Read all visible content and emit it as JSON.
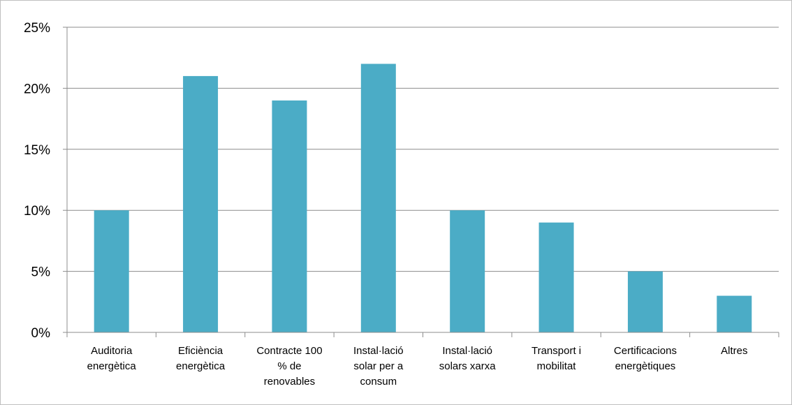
{
  "chart_data": {
    "type": "bar",
    "title": "",
    "xlabel": "",
    "ylabel": "",
    "categories": [
      [
        "Auditoria",
        "energètica"
      ],
      [
        "Eficiència",
        "energètica"
      ],
      [
        "Contracte 100",
        "% de",
        "renovables"
      ],
      [
        "Instal·lació",
        "solar per a",
        "consum"
      ],
      [
        "Instal·lació",
        "solars xarxa"
      ],
      [
        "Transport i",
        "mobilitat"
      ],
      [
        "Certificacions",
        "energètiques"
      ],
      [
        "Altres"
      ]
    ],
    "values": [
      10,
      21,
      19,
      22,
      10,
      9,
      5,
      3
    ],
    "ylim": [
      0,
      25
    ],
    "yticks": [
      0,
      5,
      10,
      15,
      20,
      25
    ],
    "ytick_labels": [
      "0%",
      "5%",
      "10%",
      "15%",
      "20%",
      "25%"
    ],
    "grid": true,
    "legend": "none",
    "colors": {
      "bar": "#4BACC6",
      "grid": "#8c8c8c",
      "axis": "#8c8c8c",
      "border": "#bfbfbf"
    }
  }
}
